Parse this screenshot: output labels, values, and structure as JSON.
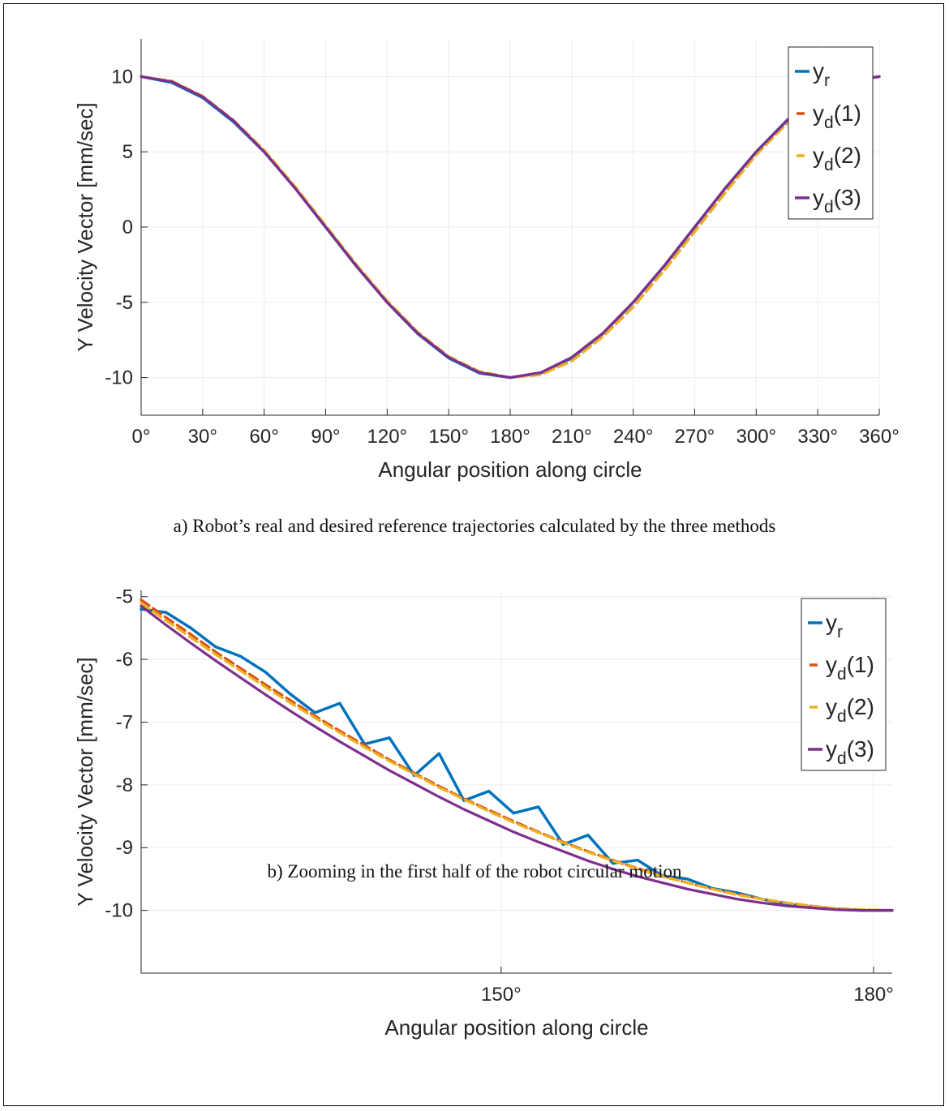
{
  "captions": {
    "a": "a) Robot’s real and desired reference trajectories calculated by the three methods",
    "b": "b) Zooming in the first half of the robot circular motion"
  },
  "colors": {
    "yr": "#0072BD",
    "yd1": "#D95319",
    "yd2": "#EDB120",
    "yd3": "#7E2F8E"
  },
  "chart_data": [
    {
      "type": "line",
      "xlabel": "Angular position along circle",
      "ylabel": "Y Velocity Vector [mm/sec]",
      "xlim": [
        0,
        360
      ],
      "ylim": [
        -12.5,
        12.5
      ],
      "x_ticks": [
        "0°",
        "30°",
        "60°",
        "90°",
        "120°",
        "150°",
        "180°",
        "210°",
        "240°",
        "270°",
        "300°",
        "330°",
        "360°"
      ],
      "y_ticks": [
        "10",
        "5",
        "0",
        "-5",
        "-10"
      ],
      "grid": true,
      "legend_position": "top-right",
      "x": [
        0,
        15,
        30,
        45,
        60,
        75,
        90,
        105,
        120,
        135,
        150,
        165,
        180,
        195,
        210,
        225,
        240,
        255,
        270,
        285,
        300,
        315,
        330,
        345,
        360
      ],
      "series": [
        {
          "name": "y_r",
          "key": "yr",
          "values": [
            10,
            9.6,
            8.6,
            7.0,
            5.0,
            2.6,
            0.0,
            -2.6,
            -5.0,
            -7.1,
            -8.7,
            -9.7,
            -10.0,
            -9.7,
            -8.7,
            -7.1,
            -5.0,
            -2.6,
            0.0,
            2.6,
            5.0,
            7.1,
            8.7,
            9.7,
            10.0
          ]
        },
        {
          "name": "y_d(1)",
          "key": "yd1",
          "values": [
            10,
            9.7,
            8.7,
            7.1,
            5.1,
            2.7,
            0.1,
            -2.5,
            -4.9,
            -7.0,
            -8.6,
            -9.6,
            -10.0,
            -9.8,
            -8.9,
            -7.3,
            -5.3,
            -2.9,
            -0.3,
            2.3,
            4.8,
            6.9,
            8.6,
            9.6,
            10.0
          ]
        },
        {
          "name": "y_d(2)",
          "key": "yd2",
          "values": [
            10,
            9.7,
            8.7,
            7.1,
            5.1,
            2.7,
            0.1,
            -2.5,
            -4.9,
            -7.0,
            -8.6,
            -9.6,
            -10.0,
            -9.8,
            -8.9,
            -7.3,
            -5.3,
            -2.9,
            -0.3,
            2.3,
            4.8,
            6.9,
            8.6,
            9.6,
            10.0
          ]
        },
        {
          "name": "y_d(3)",
          "key": "yd3",
          "values": [
            10,
            9.66,
            8.66,
            7.07,
            5.0,
            2.59,
            0.0,
            -2.59,
            -5.0,
            -7.07,
            -8.66,
            -9.66,
            -10.0,
            -9.66,
            -8.66,
            -7.07,
            -5.0,
            -2.59,
            0.0,
            2.59,
            5.0,
            7.07,
            8.66,
            9.66,
            10.0
          ]
        }
      ]
    },
    {
      "type": "line",
      "xlabel": "Angular position along circle",
      "ylabel": "Y Velocity Vector [mm/sec]",
      "xlim": [
        121,
        181.5
      ],
      "ylim": [
        -11,
        -4.9
      ],
      "x_ticks": [
        "150°",
        "180°"
      ],
      "y_ticks": [
        "-5",
        "-6",
        "-7",
        "-8",
        "-9",
        "-10"
      ],
      "grid": true,
      "legend_position": "top-right",
      "x": [
        121,
        123,
        125,
        127,
        129,
        131,
        133,
        135,
        137,
        139,
        141,
        143,
        145,
        147,
        149,
        151,
        153,
        155,
        157,
        159,
        161,
        163,
        165,
        167,
        169,
        171,
        173,
        175,
        177,
        179,
        181.5
      ],
      "series": [
        {
          "name": "y_r",
          "key": "yr",
          "values": [
            -5.2,
            -5.25,
            -5.5,
            -5.8,
            -5.95,
            -6.2,
            -6.55,
            -6.85,
            -6.7,
            -7.35,
            -7.25,
            -7.85,
            -7.5,
            -8.25,
            -8.1,
            -8.45,
            -8.35,
            -8.95,
            -8.8,
            -9.25,
            -9.2,
            -9.45,
            -9.5,
            -9.65,
            -9.72,
            -9.82,
            -9.9,
            -9.95,
            -9.98,
            -10.0,
            -10.0
          ]
        },
        {
          "name": "y_d(1)",
          "key": "yd1",
          "values": [
            -5.05,
            -5.33,
            -5.6,
            -5.88,
            -6.14,
            -6.4,
            -6.65,
            -6.9,
            -7.14,
            -7.37,
            -7.6,
            -7.81,
            -8.02,
            -8.22,
            -8.4,
            -8.58,
            -8.75,
            -8.91,
            -9.06,
            -9.2,
            -9.33,
            -9.45,
            -9.56,
            -9.66,
            -9.74,
            -9.82,
            -9.88,
            -9.93,
            -9.97,
            -9.99,
            -10.0
          ]
        },
        {
          "name": "y_d(2)",
          "key": "yd2",
          "values": [
            -5.1,
            -5.38,
            -5.65,
            -5.92,
            -6.18,
            -6.44,
            -6.69,
            -6.93,
            -7.17,
            -7.4,
            -7.62,
            -7.83,
            -8.04,
            -8.23,
            -8.42,
            -8.6,
            -8.76,
            -8.92,
            -9.07,
            -9.21,
            -9.34,
            -9.46,
            -9.56,
            -9.66,
            -9.75,
            -9.82,
            -9.88,
            -9.93,
            -9.97,
            -9.99,
            -10.0
          ]
        },
        {
          "name": "y_d(3)",
          "key": "yd3",
          "values": [
            -5.15,
            -5.45,
            -5.74,
            -6.02,
            -6.29,
            -6.56,
            -6.82,
            -7.07,
            -7.31,
            -7.54,
            -7.77,
            -7.98,
            -8.19,
            -8.39,
            -8.57,
            -8.75,
            -8.91,
            -9.06,
            -9.21,
            -9.34,
            -9.46,
            -9.56,
            -9.66,
            -9.74,
            -9.82,
            -9.88,
            -9.93,
            -9.96,
            -9.99,
            -10.0,
            -10.0
          ]
        }
      ]
    }
  ]
}
